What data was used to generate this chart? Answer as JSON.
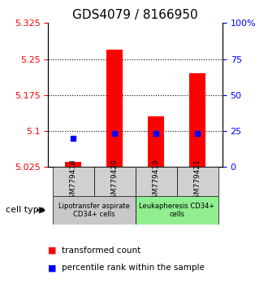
{
  "title": "GDS4079 / 8166950",
  "samples": [
    "GSM779418",
    "GSM779420",
    "GSM779419",
    "GSM779421"
  ],
  "red_values": [
    5.035,
    5.27,
    5.13,
    5.22
  ],
  "blue_values": [
    5.085,
    5.095,
    5.095,
    5.095
  ],
  "ylim_left": [
    5.025,
    5.325
  ],
  "ylim_right": [
    0,
    100
  ],
  "yticks_left": [
    5.025,
    5.1,
    5.175,
    5.25,
    5.325
  ],
  "ytick_labels_left": [
    "5.025",
    "5.1",
    "5.175",
    "5.25",
    "5.325"
  ],
  "yticks_right": [
    0,
    25,
    50,
    75,
    100
  ],
  "ytick_labels_right": [
    "0",
    "25",
    "50",
    "75",
    "100%"
  ],
  "dotted_yticks": [
    5.1,
    5.175,
    5.25
  ],
  "cell_type_groups": [
    {
      "label": "Lipotransfer aspirate\nCD34+ cells",
      "color": "#c8c8c8",
      "samples": [
        "GSM779418",
        "GSM779420"
      ]
    },
    {
      "label": "Leukapheresis CD34+\ncells",
      "color": "#90ee90",
      "samples": [
        "GSM779419",
        "GSM779421"
      ]
    }
  ],
  "bar_width": 0.4,
  "legend_red": "transformed count",
  "legend_blue": "percentile rank within the sample",
  "cell_type_label": "cell type",
  "title_fontsize": 11,
  "tick_fontsize": 8,
  "legend_fontsize": 7.5
}
